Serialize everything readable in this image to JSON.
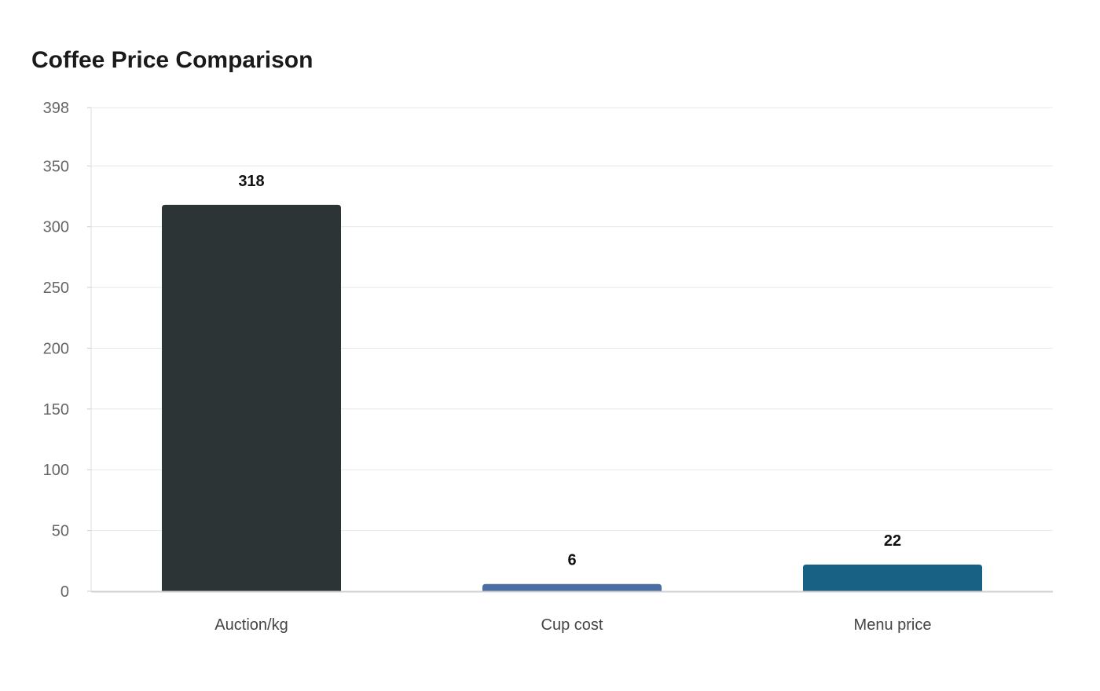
{
  "chart_data": {
    "type": "bar",
    "title": "Coffee Price Comparison",
    "categories": [
      "Auction/kg",
      "Cup cost",
      "Menu price"
    ],
    "values": [
      318,
      6,
      22
    ],
    "data_labels": [
      "318",
      "6",
      "22"
    ],
    "colors": [
      "#2d3436",
      "#4a6da3",
      "#186185"
    ],
    "xlabel": "",
    "ylabel": "",
    "ylim": [
      0,
      398
    ],
    "yticks": [
      0,
      50,
      100,
      150,
      200,
      250,
      300,
      350,
      398
    ],
    "grid": true,
    "legend": "none"
  }
}
